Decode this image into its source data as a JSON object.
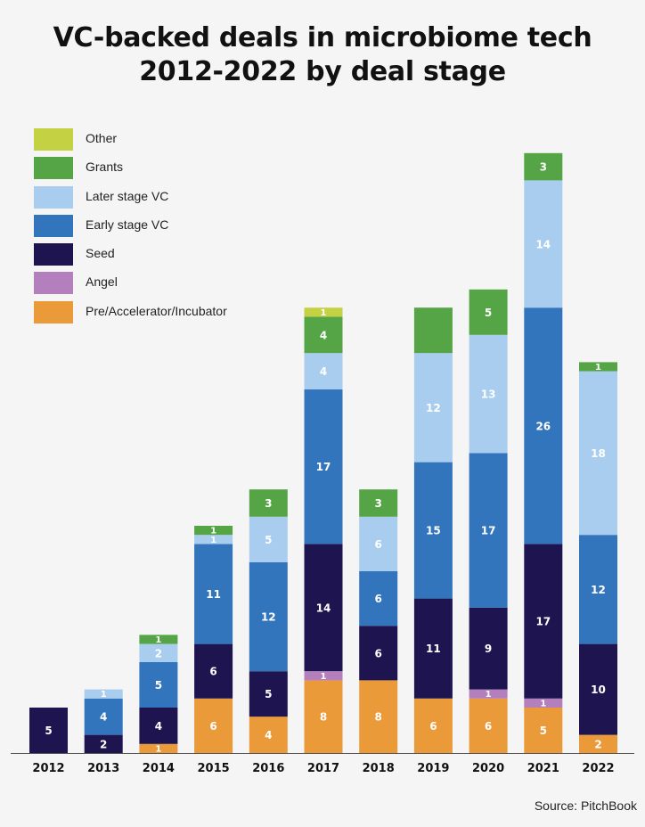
{
  "title_lines": [
    "VC-backed deals in microbiome tech",
    "2012-2022 by deal stage"
  ],
  "source": "Source: PitchBook",
  "colors": {
    "Other": "#c4d142",
    "Grants": "#55a546",
    "Later stage VC": "#a9cdee",
    "Early stage VC": "#3375bd",
    "Seed": "#1e1550",
    "Angel": "#b47fbd",
    "Pre/Accelerator/Incubator": "#eb9a3a"
  },
  "chart_data": {
    "type": "bar",
    "stacked": true,
    "title": "VC-backed deals in microbiome tech 2012-2022 by deal stage",
    "categories": [
      "2012",
      "2013",
      "2014",
      "2015",
      "2016",
      "2017",
      "2018",
      "2019",
      "2020",
      "2021",
      "2022"
    ],
    "legend_position": "top-left",
    "grid": false,
    "series": [
      {
        "name": "Pre/Accelerator/Incubator",
        "values": [
          0,
          0,
          1,
          6,
          4,
          8,
          8,
          6,
          6,
          5,
          2
        ]
      },
      {
        "name": "Angel",
        "values": [
          0,
          0,
          0,
          0,
          0,
          1,
          0,
          0,
          1,
          1,
          0
        ]
      },
      {
        "name": "Seed",
        "values": [
          5,
          2,
          4,
          6,
          5,
          14,
          6,
          11,
          9,
          17,
          10
        ]
      },
      {
        "name": "Early stage VC",
        "values": [
          0,
          4,
          5,
          11,
          12,
          17,
          6,
          15,
          17,
          26,
          12
        ]
      },
      {
        "name": "Later stage VC",
        "values": [
          0,
          1,
          2,
          1,
          5,
          4,
          6,
          12,
          13,
          14,
          18
        ]
      },
      {
        "name": "Grants",
        "values": [
          0,
          0,
          1,
          1,
          3,
          4,
          3,
          5,
          5,
          3,
          1
        ]
      },
      {
        "name": "Other",
        "values": [
          0,
          0,
          0,
          0,
          0,
          1,
          0,
          0,
          0,
          0,
          0
        ]
      }
    ],
    "hidden_labels": [
      [
        5,
        7
      ],
      [
        7,
        5
      ]
    ],
    "legend_order": [
      "Other",
      "Grants",
      "Later stage VC",
      "Early stage VC",
      "Seed",
      "Angel",
      "Pre/Accelerator/Incubator"
    ]
  }
}
